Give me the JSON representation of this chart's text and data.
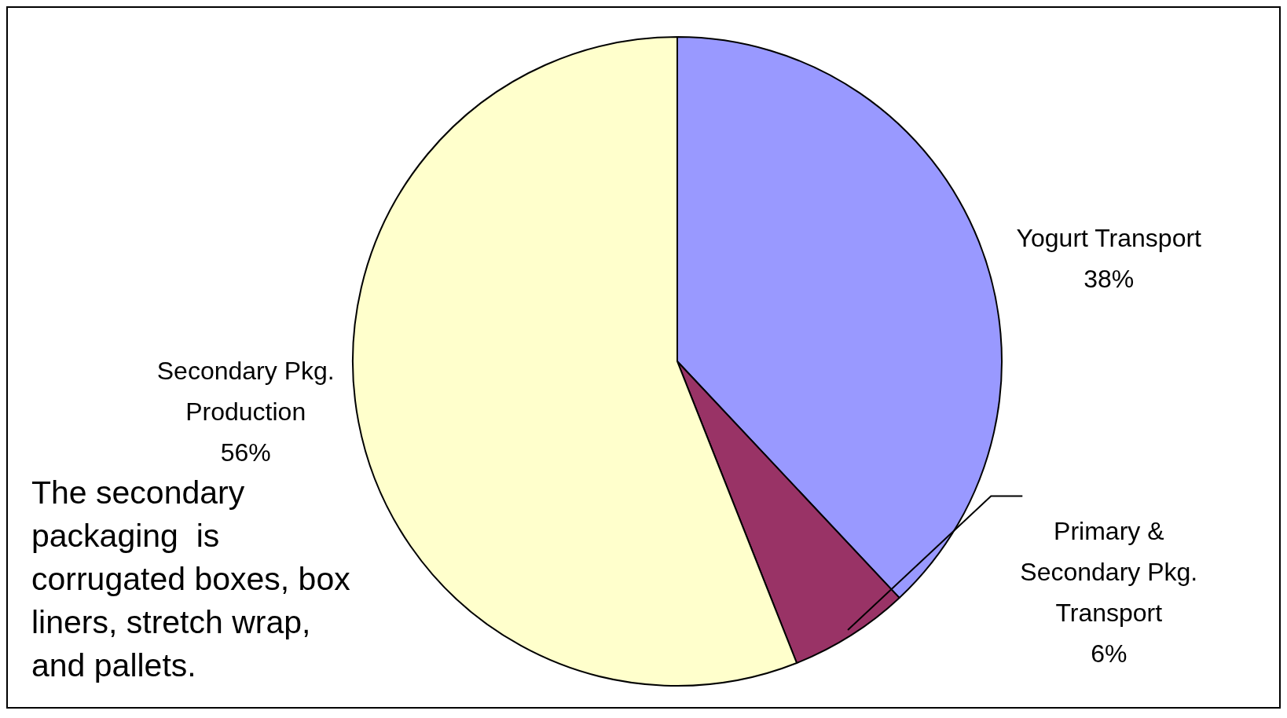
{
  "chart_data": {
    "type": "pie",
    "categories": [
      "Yogurt Transport",
      "Primary & Secondary Pkg. Transport",
      "Secondary Pkg. Production"
    ],
    "values": [
      38,
      6,
      56
    ],
    "colors": [
      "#9999ff",
      "#993366",
      "#ffffcc"
    ],
    "value_labels": [
      "38%",
      "6%",
      "56%"
    ],
    "legend": false,
    "annotations": [
      "The secondary packaging  is corrugated boxes, box liners, stretch wrap, and pallets."
    ]
  }
}
